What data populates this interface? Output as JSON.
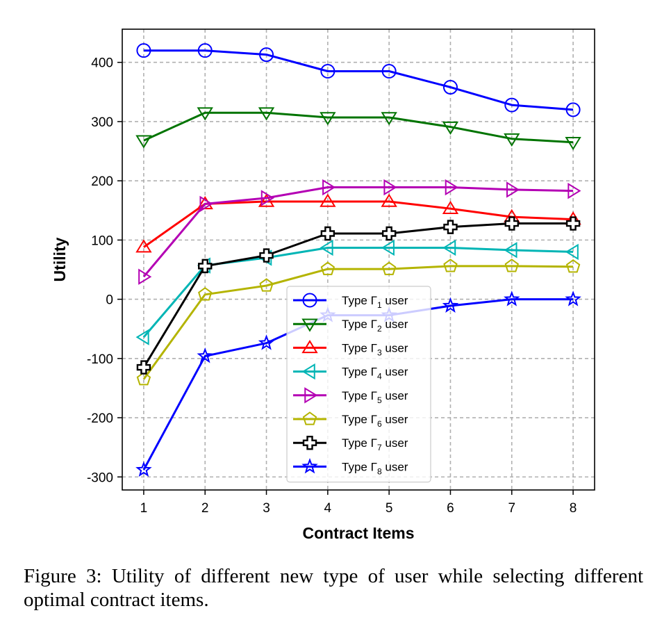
{
  "chart_data": {
    "type": "line",
    "xlabel": "Contract Items",
    "ylabel": "Utility",
    "x": [
      1,
      2,
      3,
      4,
      5,
      6,
      7,
      8
    ],
    "xlim": [
      0.65,
      8.35
    ],
    "ylim": [
      -322,
      456
    ],
    "yticks": [
      400,
      300,
      200,
      100,
      0,
      -100,
      -200,
      -300
    ],
    "xticks": [
      1,
      2,
      3,
      4,
      5,
      6,
      7,
      8
    ],
    "grid": true,
    "legend_position": "lower-right",
    "series": [
      {
        "name": "Type Γ",
        "sub": "1",
        "suffix": " user",
        "color": "#0000ff",
        "marker": "circle",
        "values": [
          420,
          420,
          413,
          385,
          385,
          358,
          328,
          320
        ]
      },
      {
        "name": "Type Γ",
        "sub": "2",
        "suffix": " user",
        "color": "#007400",
        "marker": "triangle-down",
        "values": [
          268,
          315,
          315,
          307,
          307,
          291,
          271,
          265
        ]
      },
      {
        "name": "Type Γ",
        "sub": "3",
        "suffix": " user",
        "color": "#ff0000",
        "marker": "triangle-up",
        "values": [
          88,
          161,
          165,
          165,
          165,
          153,
          139,
          135
        ]
      },
      {
        "name": "Type Γ",
        "sub": "4",
        "suffix": " user",
        "color": "#00b5b5",
        "marker": "triangle-left",
        "values": [
          -64,
          57,
          70,
          87,
          87,
          87,
          83,
          80
        ]
      },
      {
        "name": "Type Γ",
        "sub": "5",
        "suffix": " user",
        "color": "#b400b4",
        "marker": "triangle-right",
        "values": [
          38,
          161,
          171,
          189,
          189,
          189,
          185,
          183
        ]
      },
      {
        "name": "Type Γ",
        "sub": "6",
        "suffix": " user",
        "color": "#b4b400",
        "marker": "pentagon",
        "values": [
          -135,
          8,
          23,
          51,
          51,
          56,
          56,
          55
        ]
      },
      {
        "name": "Type Γ",
        "sub": "7",
        "suffix": " user",
        "color": "#000000",
        "marker": "plus",
        "values": [
          -115,
          56,
          74,
          111,
          111,
          122,
          128,
          128
        ]
      },
      {
        "name": "Type Γ",
        "sub": "8",
        "suffix": " user",
        "color": "#0000ff",
        "marker": "star",
        "values": [
          -288,
          -96,
          -74,
          -27,
          -27,
          -11,
          0,
          0
        ]
      }
    ]
  },
  "caption": {
    "text": "Figure 3: Utility of different new type of user while selecting different optimal contract items."
  }
}
